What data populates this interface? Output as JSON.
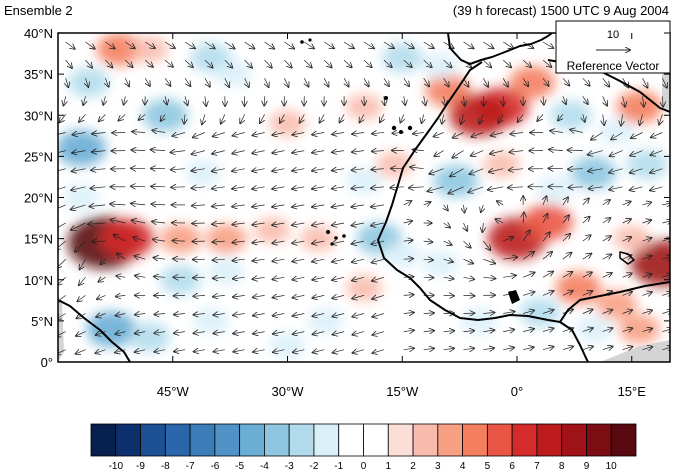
{
  "title_left": "Ensemble 2",
  "title_right": "(39 h forecast) 1500 UTC 9 Aug 2004",
  "reference_vector": {
    "magnitude_label": "10",
    "caption": "Reference Vector"
  },
  "map": {
    "lon_range": [
      -60,
      20
    ],
    "lat_range": [
      0,
      40
    ],
    "lat_ticks": [
      {
        "value": 40,
        "label": "40°N"
      },
      {
        "value": 35,
        "label": "35°N"
      },
      {
        "value": 30,
        "label": "30°N"
      },
      {
        "value": 25,
        "label": "25°N"
      },
      {
        "value": 20,
        "label": "20°N"
      },
      {
        "value": 15,
        "label": "15°N"
      },
      {
        "value": 10,
        "label": "10°N"
      },
      {
        "value": 5,
        "label": "5°N"
      },
      {
        "value": 0,
        "label": "0°"
      }
    ],
    "lon_ticks": [
      {
        "value": -45,
        "label": "45°W"
      },
      {
        "value": -30,
        "label": "30°W"
      },
      {
        "value": -15,
        "label": "15°W"
      },
      {
        "value": 0,
        "label": "0°"
      },
      {
        "value": 15,
        "label": "15°E"
      }
    ],
    "anomalies": [
      {
        "lon": -54,
        "lat": 14.5,
        "value": 10
      },
      {
        "lon": -51,
        "lat": 15,
        "value": 6
      },
      {
        "lon": -52,
        "lat": 38,
        "value": 4
      },
      {
        "lon": -48,
        "lat": 38,
        "value": 2
      },
      {
        "lon": -56,
        "lat": 34,
        "value": -3
      },
      {
        "lon": -40,
        "lat": 37,
        "value": -3
      },
      {
        "lon": -37,
        "lat": 35,
        "value": -2
      },
      {
        "lon": -46,
        "lat": 30,
        "value": -4
      },
      {
        "lon": -57,
        "lat": 26,
        "value": -5
      },
      {
        "lon": -57,
        "lat": 20,
        "value": -2
      },
      {
        "lon": -41,
        "lat": 23,
        "value": -2
      },
      {
        "lon": -44,
        "lat": 15,
        "value": 3
      },
      {
        "lon": -38,
        "lat": 15,
        "value": 3
      },
      {
        "lon": -32,
        "lat": 16,
        "value": 2
      },
      {
        "lon": -26,
        "lat": 15,
        "value": 2
      },
      {
        "lon": -44,
        "lat": 10,
        "value": -3
      },
      {
        "lon": -38,
        "lat": 11,
        "value": -2
      },
      {
        "lon": -53,
        "lat": 4,
        "value": -5
      },
      {
        "lon": -48,
        "lat": 3,
        "value": -3
      },
      {
        "lon": -40,
        "lat": 5,
        "value": -2
      },
      {
        "lon": -25,
        "lat": 5,
        "value": -2
      },
      {
        "lon": -20,
        "lat": 9,
        "value": 2
      },
      {
        "lon": -30,
        "lat": 29,
        "value": 2
      },
      {
        "lon": -20,
        "lat": 31,
        "value": 2
      },
      {
        "lon": -9,
        "lat": 33,
        "value": 4
      },
      {
        "lon": -2,
        "lat": 31,
        "value": 6
      },
      {
        "lon": -5,
        "lat": 30,
        "value": 7
      },
      {
        "lon": 2,
        "lat": 34,
        "value": 4
      },
      {
        "lon": -15,
        "lat": 37,
        "value": -3
      },
      {
        "lon": -10,
        "lat": 36,
        "value": -2
      },
      {
        "lon": -20,
        "lat": 22,
        "value": -2
      },
      {
        "lon": -16,
        "lat": 24,
        "value": 2
      },
      {
        "lon": -18,
        "lat": 15,
        "value": -4
      },
      {
        "lon": -15,
        "lat": 13,
        "value": -2
      },
      {
        "lon": -8,
        "lat": 22,
        "value": -4
      },
      {
        "lon": -10,
        "lat": 12,
        "value": -2
      },
      {
        "lon": -2,
        "lat": 24,
        "value": 2
      },
      {
        "lon": 0,
        "lat": 15,
        "value": 7
      },
      {
        "lon": 4,
        "lat": 17,
        "value": 5
      },
      {
        "lon": 5,
        "lat": 21,
        "value": -2
      },
      {
        "lon": 7,
        "lat": 30,
        "value": -3
      },
      {
        "lon": 10,
        "lat": 23,
        "value": -4
      },
      {
        "lon": 13,
        "lat": 28,
        "value": -2
      },
      {
        "lon": 16,
        "lat": 31,
        "value": 4
      },
      {
        "lon": 17,
        "lat": 24,
        "value": -3
      },
      {
        "lon": 19,
        "lat": 12,
        "value": 8
      },
      {
        "lon": 15,
        "lat": 15,
        "value": 2
      },
      {
        "lon": 8,
        "lat": 9,
        "value": 4
      },
      {
        "lon": 13,
        "lat": 7,
        "value": 3
      },
      {
        "lon": 3,
        "lat": 6,
        "value": -3
      },
      {
        "lon": 10,
        "lat": 4,
        "value": -2
      },
      {
        "lon": 16,
        "lat": 4,
        "value": 3
      },
      {
        "lon": -5,
        "lat": 5,
        "value": -2
      },
      {
        "lon": -30,
        "lat": 2,
        "value": -2
      }
    ],
    "colors": {
      "coast": "#000000",
      "vector": "#222222",
      "missing": "#d4d4d4"
    }
  },
  "colorbar": {
    "labels": [
      "-10",
      "-9",
      "-8",
      "-7",
      "-6",
      "-5",
      "-4",
      "-3",
      "-2",
      "-1",
      "0",
      "1",
      "2",
      "3",
      "4",
      "5",
      "6",
      "7",
      "8",
      "9",
      "10"
    ],
    "colors": [
      "#08204f",
      "#0c306b",
      "#1d4f94",
      "#2a66ac",
      "#3b7db8",
      "#4f93c6",
      "#6aadd5",
      "#8ec6e0",
      "#b2dcec",
      "#daf0f8",
      "#ffffff",
      "#ffffff",
      "#fcded9",
      "#f8bcae",
      "#f7a084",
      "#f47f5f",
      "#ea5645",
      "#d52b2b",
      "#bd1c1c",
      "#a01419",
      "#7c0d13",
      "#5a0810"
    ]
  }
}
